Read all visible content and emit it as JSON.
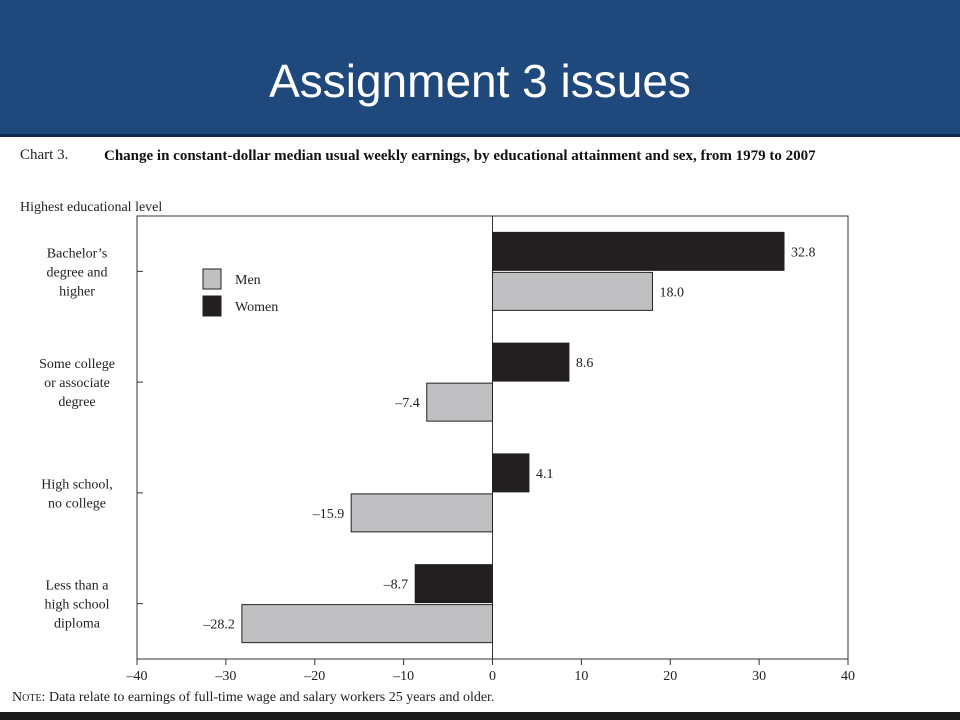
{
  "slide": {
    "title": "Assignment 3 issues"
  },
  "figure": {
    "number": "Chart 3.",
    "title": "Change in constant-dollar median usual weekly earnings, by educational attainment and sex, from 1979 to 2007",
    "category_axis_title": "Highest educational level",
    "note_lead": "Note:",
    "note_text": " Data relate to earnings of full-time wage and salary workers 25 years and older."
  },
  "chart_data": {
    "type": "bar",
    "orientation": "horizontal",
    "categories": [
      [
        "Bachelor’s",
        "degree and",
        "higher"
      ],
      [
        "Some college",
        "or associate",
        "degree"
      ],
      [
        "High school,",
        "no college"
      ],
      [
        "Less than a",
        "high school",
        "diploma"
      ]
    ],
    "series": [
      {
        "name": "Women",
        "color": "#231f20",
        "values": [
          32.8,
          8.6,
          4.1,
          -8.7
        ],
        "labels": [
          "32.8",
          "8.6",
          "4.1",
          "–8.7"
        ]
      },
      {
        "name": "Men",
        "color": "#c0c0c2",
        "values": [
          18.0,
          -7.4,
          -15.9,
          -28.2
        ],
        "labels": [
          "18.0",
          "–7.4",
          "–15.9",
          "–28.2"
        ]
      }
    ],
    "legend": {
      "placement": "top-left",
      "order": [
        "Men",
        "Women"
      ]
    },
    "xlim": [
      -40,
      40
    ],
    "xticks": [
      -40,
      -30,
      -20,
      -10,
      0,
      10,
      20,
      30,
      40
    ],
    "xtick_labels": [
      "–40",
      "–30",
      "–20",
      "–10",
      "0",
      "10",
      "20",
      "30",
      "40"
    ],
    "grid": false
  }
}
